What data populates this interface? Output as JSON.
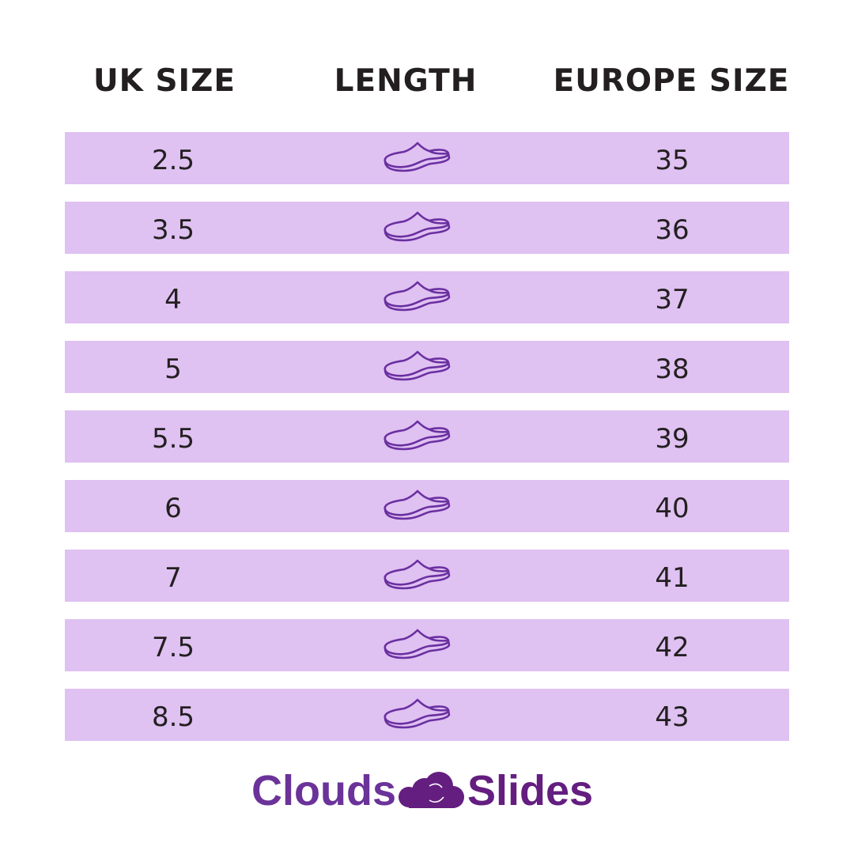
{
  "headers": {
    "uk": "UK SIZE",
    "length": "LENGTH",
    "europe": "EUROPE SIZE"
  },
  "rows": [
    {
      "uk": "2.5",
      "europe": "35"
    },
    {
      "uk": "3.5",
      "europe": "36"
    },
    {
      "uk": "4",
      "europe": "37"
    },
    {
      "uk": "5",
      "europe": "38"
    },
    {
      "uk": "5.5",
      "europe": "39"
    },
    {
      "uk": "6",
      "europe": "40"
    },
    {
      "uk": "7",
      "europe": "41"
    },
    {
      "uk": "7.5",
      "europe": "42"
    },
    {
      "uk": "8.5",
      "europe": "43"
    }
  ],
  "length_icon": "slipper-shoe-icon",
  "logo": {
    "left": "Clouds",
    "right": "Slides",
    "icon": "cloud-feet-icon"
  },
  "colors": {
    "row_bg": "#dfc1f2",
    "icon": "#6a2fa0",
    "logo": "#641e80",
    "text": "#231f20"
  }
}
